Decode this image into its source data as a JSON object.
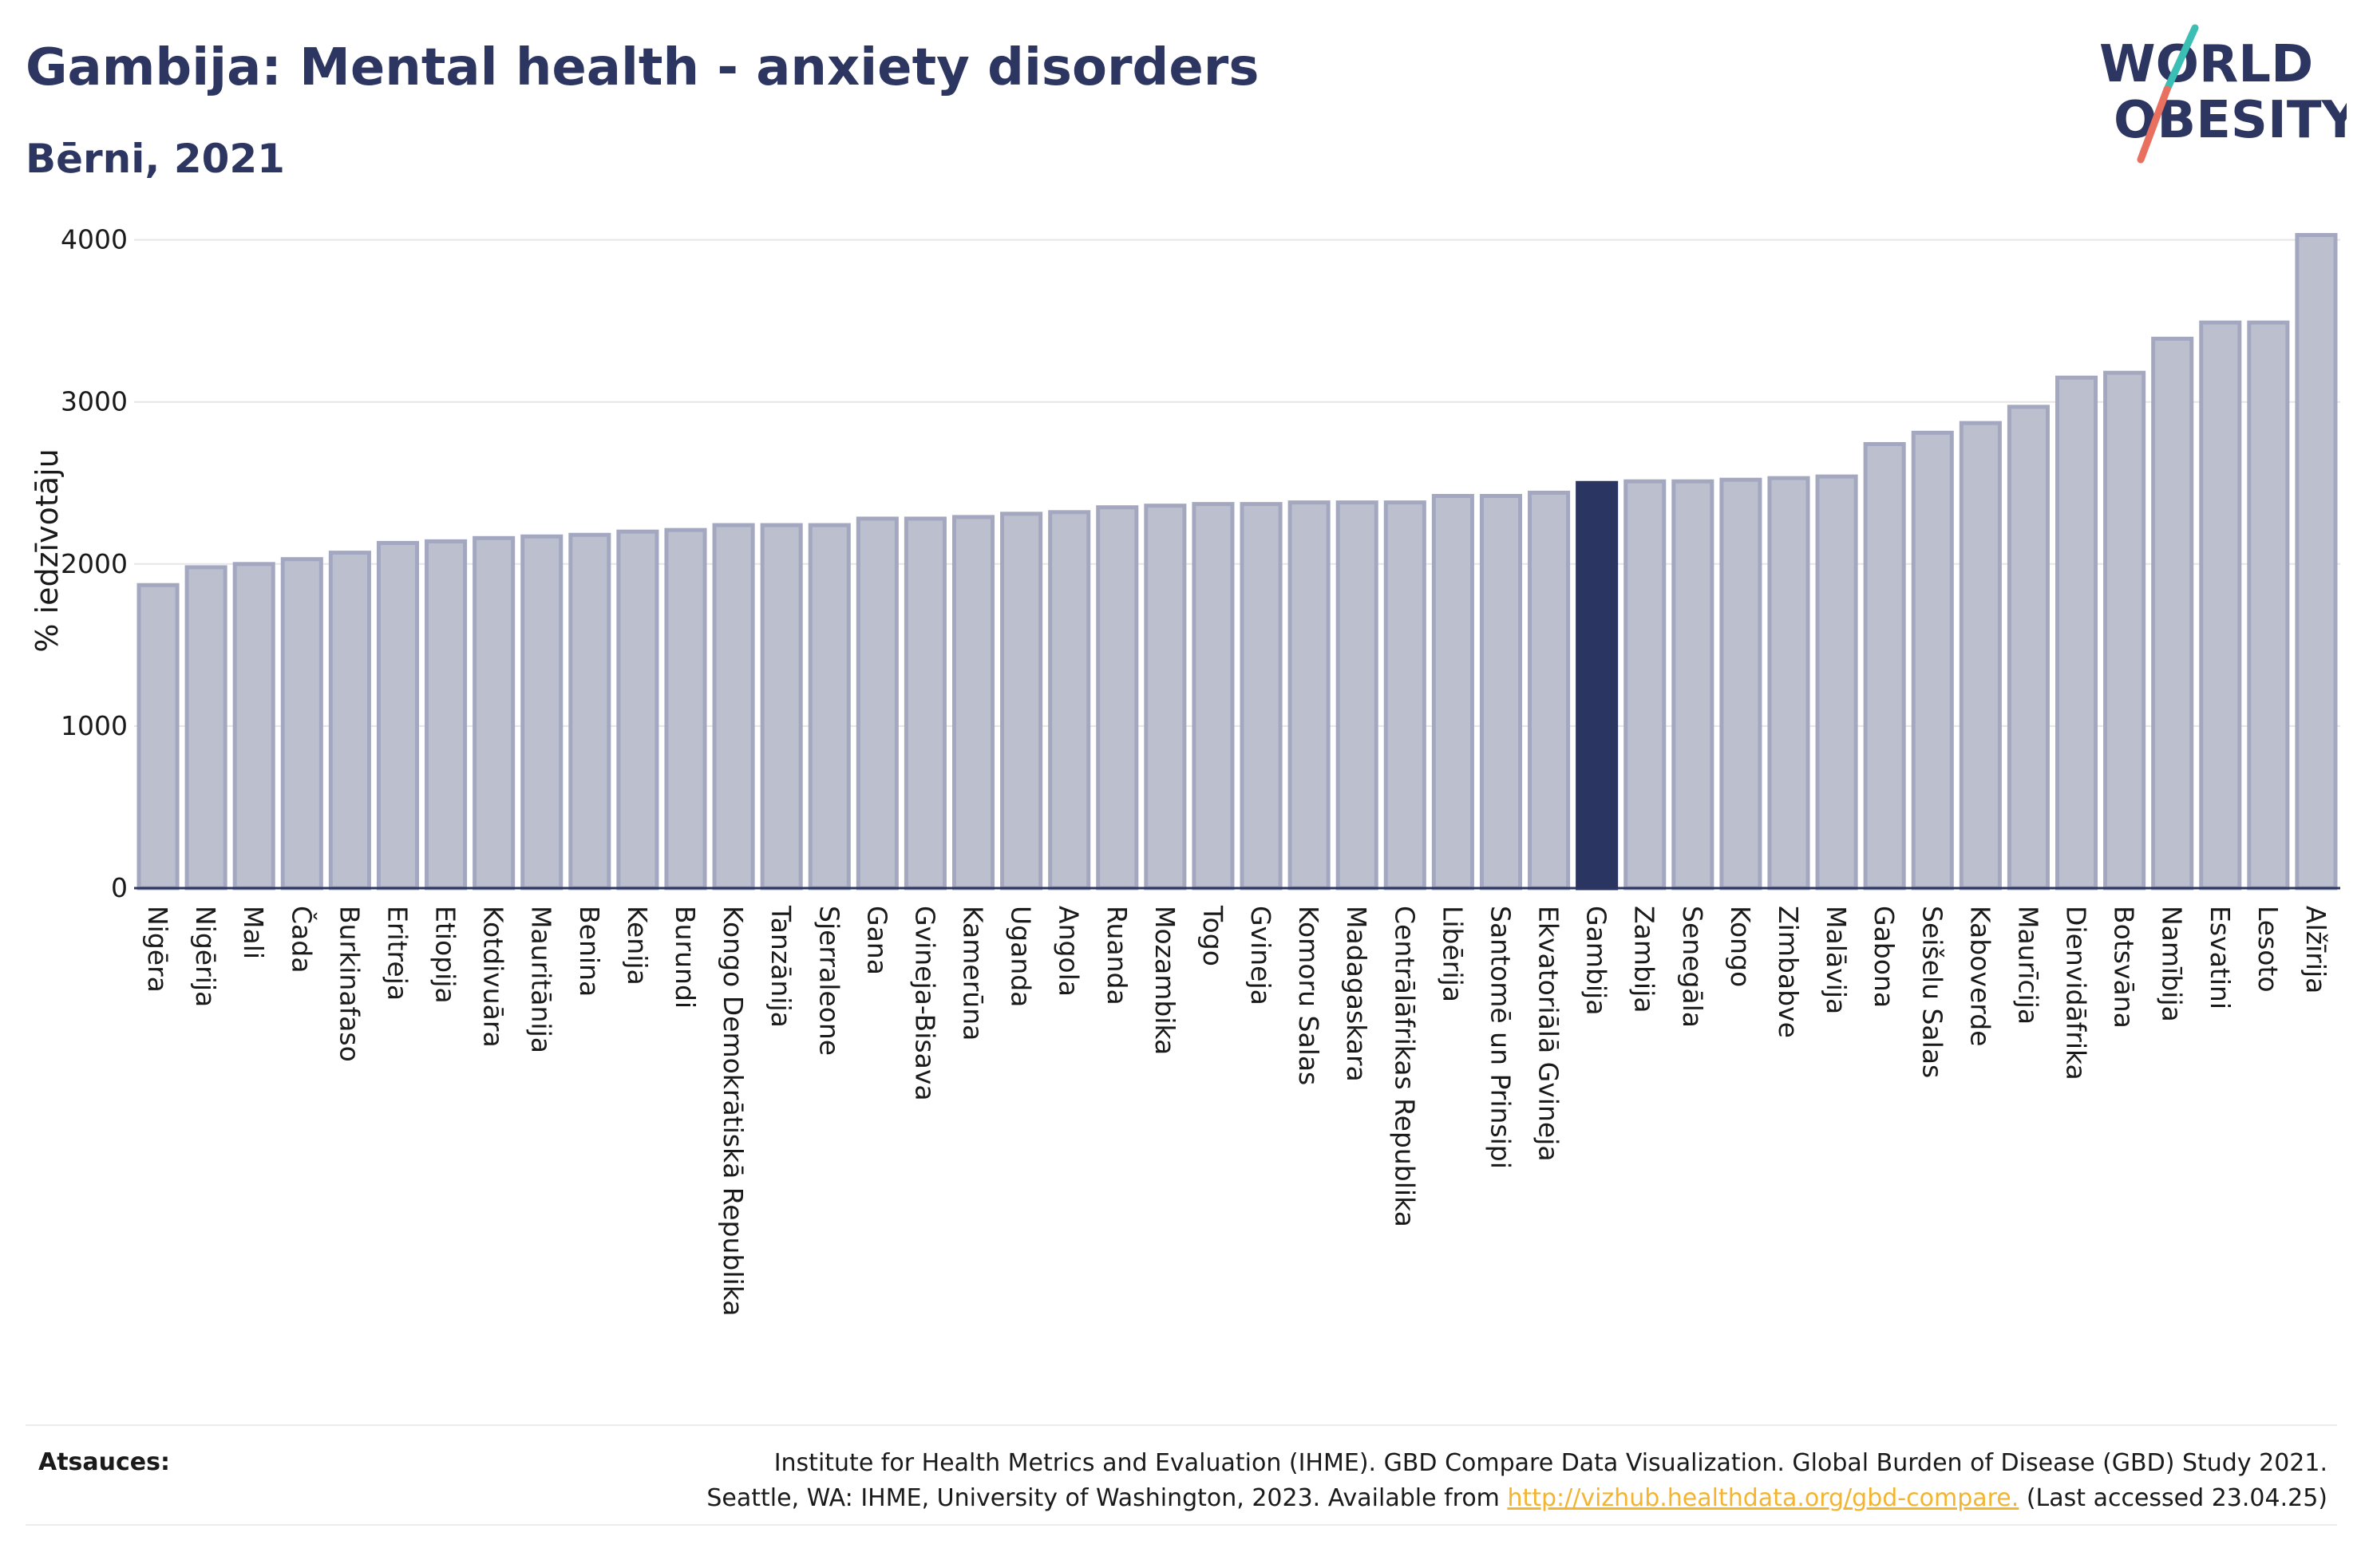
{
  "header": {
    "title": "Gambija: Mental health - anxiety disorders",
    "subtitle": "Bērni, 2021"
  },
  "logo": {
    "line1": "WORLD",
    "line2": "OBESITY"
  },
  "colors": {
    "title": "#2d3561",
    "bar_fill": "#bcc0ce",
    "bar_stroke": "#a3a8c0",
    "highlight": "#2b3561",
    "grid": "#e6e6e6",
    "logo_teal": "#3bbfb4",
    "logo_coral": "#e9705f",
    "link": "#f2b431"
  },
  "chart_data": {
    "type": "bar",
    "title": "Gambija: Mental health - anxiety disorders",
    "subtitle": "Bērni, 2021",
    "ylabel": "% iedzīvotāju",
    "xlabel": "",
    "ylim": [
      0,
      4200
    ],
    "yticks": [
      0,
      1000,
      2000,
      3000,
      4000
    ],
    "grid": true,
    "highlight": "Gambija",
    "categories": [
      "Nigēra",
      "Nigērija",
      "Mali",
      "Čada",
      "Burkinafaso",
      "Eritreja",
      "Etiopija",
      "Kotdivuāra",
      "Mauritānija",
      "Benina",
      "Kenija",
      "Burundi",
      "Kongo Demokrātiskā Republika",
      "Tanzānija",
      "Sjerraleone",
      "Gana",
      "Gvineja-Bisava",
      "Kamerūna",
      "Uganda",
      "Angola",
      "Ruanda",
      "Mozambika",
      "Togo",
      "Gvineja",
      "Komoru Salas",
      "Madagaskara",
      "Centrālāfrikas Republika",
      "Libērija",
      "Santomē un Prinsipi",
      "Ekvatoriālā Gvineja",
      "Gambija",
      "Zambija",
      "Senegāla",
      "Kongo",
      "Zimbabve",
      "Malāvija",
      "Gabona",
      "Seišelu Salas",
      "Kaboverde",
      "Maurīcija",
      "Dienvidāfrika",
      "Botsvāna",
      "Namībija",
      "Esvatini",
      "Lesoto",
      "Alžīrija"
    ],
    "values": [
      1870,
      1980,
      2000,
      2030,
      2070,
      2130,
      2140,
      2160,
      2170,
      2180,
      2200,
      2210,
      2240,
      2240,
      2240,
      2280,
      2280,
      2290,
      2310,
      2320,
      2350,
      2360,
      2370,
      2370,
      2380,
      2380,
      2380,
      2420,
      2420,
      2440,
      2500,
      2510,
      2510,
      2520,
      2530,
      2540,
      2740,
      2810,
      2870,
      2970,
      3150,
      3180,
      3390,
      3490,
      3490,
      4030
    ]
  },
  "footer": {
    "label": "Atsauces:",
    "line1": "Institute for Health Metrics and Evaluation (IHME). GBD Compare Data Visualization. Global Burden of Disease (GBD) Study 2021.",
    "line2_prefix": "Seattle, WA: IHME, University of Washington, 2023. Available from ",
    "link_text": "http://vizhub.healthdata.org/gbd-compare.",
    "line2_suffix": " (Last accessed 23.04.25)"
  }
}
